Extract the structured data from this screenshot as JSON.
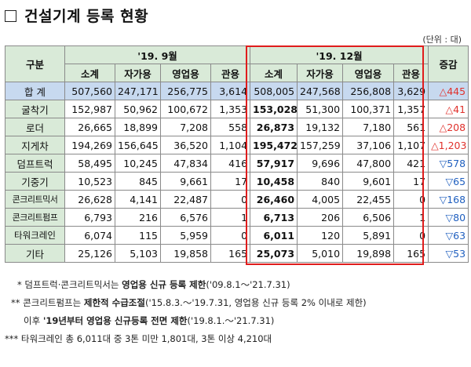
{
  "title": "건설기계 등록 현황",
  "unit": "(단위 : 대)",
  "table": {
    "category_header": "구분",
    "period_sep": "'19. 9월",
    "period_dec": "'19. 12월",
    "change_header": "증감",
    "subheaders": [
      "소계",
      "자가용",
      "영업용",
      "관용"
    ],
    "rows": [
      {
        "label": "합 계",
        "sep": [
          "507,560",
          "247,171",
          "256,775",
          "3,614"
        ],
        "dec": [
          "508,005",
          "247,568",
          "256,808",
          "3,629"
        ],
        "change": "△445",
        "dir": "up"
      },
      {
        "label": "굴착기",
        "sep": [
          "152,987",
          "50,962",
          "100,672",
          "1,353"
        ],
        "dec": [
          "153,028",
          "51,300",
          "100,371",
          "1,357"
        ],
        "change": "△41",
        "dir": "up"
      },
      {
        "label": "로더",
        "sep": [
          "26,665",
          "18,899",
          "7,208",
          "558"
        ],
        "dec": [
          "26,873",
          "19,132",
          "7,180",
          "561"
        ],
        "change": "△208",
        "dir": "up"
      },
      {
        "label": "지게차",
        "sep": [
          "194,269",
          "156,645",
          "36,520",
          "1,104"
        ],
        "dec": [
          "195,472",
          "157,259",
          "37,106",
          "1,107"
        ],
        "change": "△1,203",
        "dir": "up"
      },
      {
        "label": "덤프트럭",
        "sep": [
          "58,495",
          "10,245",
          "47,834",
          "416"
        ],
        "dec": [
          "57,917",
          "9,696",
          "47,800",
          "421"
        ],
        "change": "▽578",
        "dir": "down"
      },
      {
        "label": "기중기",
        "sep": [
          "10,523",
          "845",
          "9,661",
          "17"
        ],
        "dec": [
          "10,458",
          "840",
          "9,601",
          "17"
        ],
        "change": "▽65",
        "dir": "down"
      },
      {
        "label": "콘크리트믹서",
        "sep": [
          "26,628",
          "4,141",
          "22,487",
          "0"
        ],
        "dec": [
          "26,460",
          "4,005",
          "22,455",
          "0"
        ],
        "change": "▽168",
        "dir": "down"
      },
      {
        "label": "콘크리트펌프",
        "sep": [
          "6,793",
          "216",
          "6,576",
          "1"
        ],
        "dec": [
          "6,713",
          "206",
          "6,506",
          "1"
        ],
        "change": "▽80",
        "dir": "down"
      },
      {
        "label": "타워크레인",
        "sep": [
          "6,074",
          "115",
          "5,959",
          "0"
        ],
        "dec": [
          "6,011",
          "120",
          "5,891",
          "0"
        ],
        "change": "▽63",
        "dir": "down"
      },
      {
        "label": "기타",
        "sep": [
          "25,126",
          "5,103",
          "19,858",
          "165"
        ],
        "dec": [
          "25,073",
          "5,010",
          "19,898",
          "165"
        ],
        "change": "▽53",
        "dir": "down"
      }
    ]
  },
  "notes": {
    "n1_prefix": "* 덤프트럭·콘크리트믹서는 ",
    "n1_bold": "영업용 신규 등록 제한",
    "n1_suffix": "('09.8.1～'21.7.31)",
    "n2_prefix": "** 콘크리트펌프는 ",
    "n2_bold": "제한적 수급조절",
    "n2_suffix": "('15.8.3.～'19.7.31, 영업용 신규 등록 2% 이내로 제한)",
    "n3_prefix": "이후 ",
    "n3_bold": "'19년부터 영업용 신규등록 전면 제한",
    "n3_suffix": "('19.8.1.～'21.7.31)",
    "n4": "*** 타워크레인 총 6,011대 중 3톤 미만 1,801대, 3톤 이상 4,210대"
  }
}
